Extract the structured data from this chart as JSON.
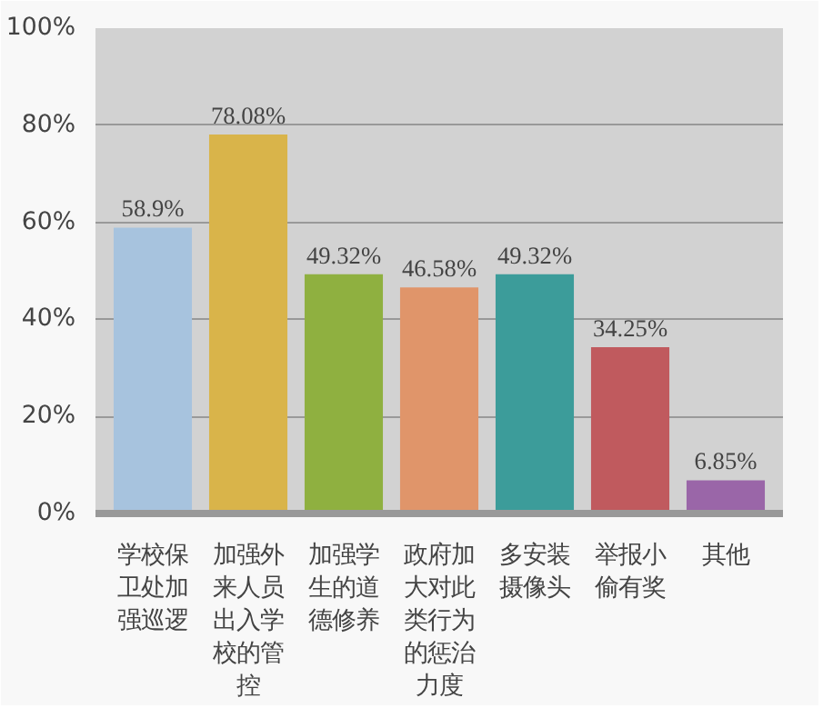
{
  "chart_data": {
    "type": "bar",
    "categories": [
      "学校保卫处加强巡逻",
      "加强外来人员出入学校的管控",
      "加强学生的道德修养",
      "政府加大对此类行为的惩治力度",
      "多安装摄像头",
      "举报小偷有奖",
      "其他"
    ],
    "values": [
      58.9,
      78.08,
      49.32,
      46.58,
      49.32,
      34.25,
      6.85
    ],
    "value_labels": [
      "58.9%",
      "78.08%",
      "49.32%",
      "46.58%",
      "49.32%",
      "34.25%",
      "6.85%"
    ],
    "colors": [
      "#a7c3de",
      "#d9b44a",
      "#8fb040",
      "#e0956a",
      "#3c9c9a",
      "#c05a5e",
      "#9a66a8"
    ],
    "ylim": [
      0,
      100
    ],
    "yticks": [
      {
        "value": 0,
        "label": "0%"
      },
      {
        "value": 20,
        "label": "20%"
      },
      {
        "value": 40,
        "label": "40%"
      },
      {
        "value": 60,
        "label": "60%"
      },
      {
        "value": 80,
        "label": "80%"
      },
      {
        "value": 100,
        "label": "100%"
      }
    ],
    "grid": "y"
  }
}
